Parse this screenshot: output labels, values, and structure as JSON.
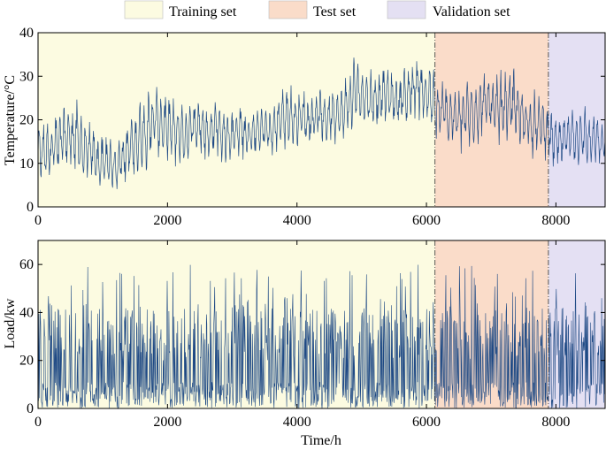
{
  "legend": [
    {
      "label": "Training set",
      "color": "#fcfbe1"
    },
    {
      "label": "Test set",
      "color": "#fadcc9"
    },
    {
      "label": "Validation set",
      "color": "#e4e0f3"
    }
  ],
  "colors": {
    "series": "#1f4a85",
    "frame": "#000000"
  },
  "chart_data": [
    {
      "type": "line",
      "title": "",
      "xlabel": "",
      "ylabel": "Temperature/°C",
      "xlim": [
        0,
        8760
      ],
      "ylim": [
        0,
        40
      ],
      "xticks": [
        0,
        2000,
        4000,
        6000,
        8000
      ],
      "yticks": [
        0,
        10,
        20,
        30,
        40
      ],
      "regions": [
        {
          "name": "Training set",
          "start": 0,
          "end": 6132
        },
        {
          "name": "Test set",
          "start": 6132,
          "end": 7884
        },
        {
          "name": "Validation set",
          "start": 7884,
          "end": 8760
        }
      ],
      "series": [
        {
          "name": "Temperature",
          "x": [
            0,
            120,
            240,
            360,
            480,
            600,
            720,
            840,
            960,
            1080,
            1200,
            1320,
            1440,
            1560,
            1680,
            1800,
            1920,
            2040,
            2160,
            2280,
            2400,
            2520,
            2640,
            2760,
            2880,
            3000,
            3120,
            3240,
            3360,
            3480,
            3600,
            3720,
            3840,
            3960,
            4080,
            4200,
            4320,
            4440,
            4560,
            4680,
            4800,
            4920,
            5040,
            5160,
            5280,
            5400,
            5520,
            5640,
            5760,
            5880,
            6000,
            6132,
            6240,
            6360,
            6480,
            6600,
            6720,
            6840,
            6960,
            7080,
            7200,
            7320,
            7440,
            7560,
            7680,
            7800,
            7884,
            8000,
            8100,
            8200,
            8300,
            8400,
            8500,
            8600,
            8700,
            8760
          ],
          "mean": [
            12,
            13,
            14,
            15,
            17,
            16,
            13,
            12,
            10,
            11,
            9,
            12,
            14,
            16,
            18,
            20,
            19,
            18,
            17,
            16,
            19,
            18,
            17,
            19,
            16,
            17,
            18,
            16,
            17,
            18,
            17,
            20,
            21,
            20,
            21,
            20,
            22,
            20,
            22,
            21,
            24,
            27,
            25,
            24,
            25,
            26,
            24,
            25,
            27,
            28,
            26,
            23,
            22,
            21,
            20,
            21,
            22,
            23,
            24,
            22,
            23,
            24,
            21,
            20,
            18,
            19,
            17,
            14,
            15,
            17,
            16,
            17,
            15,
            16,
            14,
            15
          ],
          "amp": [
            6,
            6,
            7,
            7,
            7,
            8,
            7,
            6,
            6,
            6,
            5,
            6,
            7,
            7,
            9,
            8,
            7,
            7,
            7,
            6,
            7,
            6,
            6,
            7,
            6,
            6,
            6,
            5,
            5,
            5,
            5,
            6,
            7,
            6,
            6,
            6,
            6,
            5,
            6,
            6,
            7,
            7,
            6,
            6,
            6,
            6,
            6,
            6,
            6,
            7,
            7,
            7,
            6,
            7,
            6,
            7,
            8,
            7,
            8,
            7,
            8,
            8,
            7,
            6,
            7,
            6,
            6,
            6,
            5,
            6,
            6,
            6,
            6,
            6,
            5,
            5
          ]
        }
      ]
    },
    {
      "type": "line",
      "title": "",
      "xlabel": "Time/h",
      "ylabel": "Load/kw",
      "xlim": [
        0,
        8760
      ],
      "ylim": [
        0,
        70
      ],
      "xticks": [
        0,
        2000,
        4000,
        6000,
        8000
      ],
      "yticks": [
        0,
        20,
        40,
        60
      ],
      "regions": [
        {
          "name": "Training set",
          "start": 0,
          "end": 6132
        },
        {
          "name": "Test set",
          "start": 6132,
          "end": 7884
        },
        {
          "name": "Validation set",
          "start": 7884,
          "end": 8760
        }
      ],
      "series": [
        {
          "name": "Load",
          "typical_base": 5,
          "typical_peak_range": [
            20,
            60
          ],
          "max_value": 64
        }
      ]
    }
  ]
}
